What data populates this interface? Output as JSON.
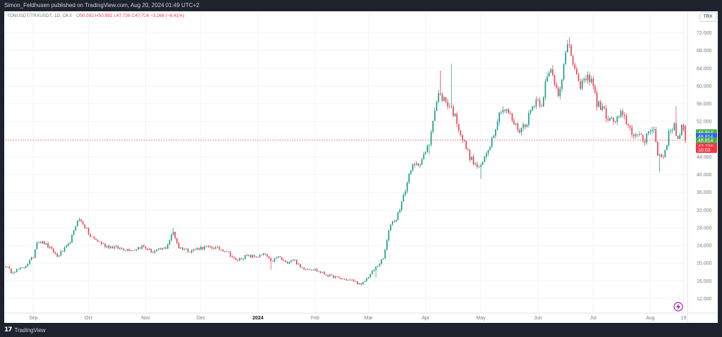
{
  "header": {
    "published_text": "Simon_Feldhusen published on TradingView.com, Aug 20, 2024 01:49 UTC+2"
  },
  "legend": {
    "symbol": "TONUSDT/TRXUSDT, 1D, OKX",
    "o_label": "O",
    "o_value": "50.992",
    "h_label": "H",
    "h_value": "50.992",
    "l_label": "L",
    "l_value": "47.726",
    "c_label": "C",
    "c_value": "47.726",
    "change": "−3.266 (−6.41%)"
  },
  "currency_button": "TRX",
  "footer": {
    "brand": "TradingView"
  },
  "price_tags": [
    {
      "label": "48.814",
      "color": "#4caf50",
      "value": 49.5
    },
    {
      "label": "48.814",
      "color": "#2962ff",
      "value": 48.6
    },
    {
      "label": "48.814",
      "color": "#4caf50",
      "value": 47.7
    },
    {
      "label": "47.726",
      "color": "#f23645",
      "value": 46.4
    },
    {
      "label": "10:03",
      "color": "#f23645",
      "value": 45.6
    }
  ],
  "colors": {
    "up": "#089981",
    "down": "#f23645",
    "last_price_line": "#f23645",
    "axis_text": "#787b86",
    "flash_icon": "#9c27b0"
  },
  "chart_data": {
    "type": "candlestick",
    "ylim": [
      10,
      74
    ],
    "y_ticks": [
      {
        "value": 72,
        "label": "72.000"
      },
      {
        "value": 68,
        "label": "68.000"
      },
      {
        "value": 64,
        "label": "64.000"
      },
      {
        "value": 60,
        "label": "60.000"
      },
      {
        "value": 56,
        "label": "56.000"
      },
      {
        "value": 52,
        "label": "52.000"
      },
      {
        "value": 48,
        "label": "48.000"
      },
      {
        "value": 44,
        "label": "44.000"
      },
      {
        "value": 40,
        "label": "40.000"
      },
      {
        "value": 36,
        "label": "36.000"
      },
      {
        "value": 32,
        "label": "32.000"
      },
      {
        "value": 28,
        "label": "28.000"
      },
      {
        "value": 24,
        "label": "24.000"
      },
      {
        "value": 20,
        "label": "20.000"
      },
      {
        "value": 16,
        "label": "16.000"
      },
      {
        "value": 12,
        "label": "12.000"
      }
    ],
    "x_ticks": [
      {
        "date": "2023-09-01",
        "label": "Sep"
      },
      {
        "date": "2023-10-01",
        "label": "Oct"
      },
      {
        "date": "2023-11-01",
        "label": "Nov"
      },
      {
        "date": "2023-12-01",
        "label": "Dec"
      },
      {
        "date": "2024-01-01",
        "label": "2024",
        "bold": true
      },
      {
        "date": "2024-02-01",
        "label": "Feb"
      },
      {
        "date": "2024-03-01",
        "label": "Mar"
      },
      {
        "date": "2024-04-01",
        "label": "Apr"
      },
      {
        "date": "2024-05-01",
        "label": "May"
      },
      {
        "date": "2024-06-01",
        "label": "Jun"
      },
      {
        "date": "2024-07-01",
        "label": "Jul"
      },
      {
        "date": "2024-08-01",
        "label": "Aug"
      },
      {
        "date": "2024-08-19",
        "label": "19"
      }
    ],
    "first_date": "2023-08-17",
    "last_date": "2024-08-20",
    "last_price": 47.726,
    "price_path": [
      [
        "2023-08-17",
        19.5
      ],
      [
        "2023-08-20",
        18.0
      ],
      [
        "2023-08-27",
        19.0
      ],
      [
        "2023-09-01",
        21.5
      ],
      [
        "2023-09-03",
        25.0
      ],
      [
        "2023-09-07",
        24.5
      ],
      [
        "2023-09-12",
        22.5
      ],
      [
        "2023-09-14",
        21.5
      ],
      [
        "2023-09-20",
        24.0
      ],
      [
        "2023-09-23",
        27.0
      ],
      [
        "2023-09-25",
        30.0
      ],
      [
        "2023-09-28",
        29.0
      ],
      [
        "2023-10-02",
        26.0
      ],
      [
        "2023-10-06",
        25.0
      ],
      [
        "2023-10-10",
        24.0
      ],
      [
        "2023-10-15",
        23.5
      ],
      [
        "2023-10-25",
        23.0
      ],
      [
        "2023-10-30",
        23.8
      ],
      [
        "2023-11-05",
        22.5
      ],
      [
        "2023-11-12",
        23.5
      ],
      [
        "2023-11-16",
        27.0
      ],
      [
        "2023-11-19",
        23.5
      ],
      [
        "2023-11-25",
        22.8
      ],
      [
        "2023-12-01",
        23.5
      ],
      [
        "2023-12-08",
        23.5
      ],
      [
        "2023-12-15",
        22.8
      ],
      [
        "2023-12-20",
        20.5
      ],
      [
        "2023-12-25",
        21.5
      ],
      [
        "2024-01-01",
        21.5
      ],
      [
        "2024-01-05",
        22.0
      ],
      [
        "2024-01-08",
        20.2
      ],
      [
        "2024-01-12",
        21.5
      ],
      [
        "2024-01-16",
        20.0
      ],
      [
        "2024-01-20",
        21.0
      ],
      [
        "2024-01-24",
        19.0
      ],
      [
        "2024-02-01",
        18.5
      ],
      [
        "2024-02-08",
        17.2
      ],
      [
        "2024-02-15",
        16.5
      ],
      [
        "2024-02-22",
        16.0
      ],
      [
        "2024-02-26",
        15.0
      ],
      [
        "2024-03-01",
        17.0
      ],
      [
        "2024-03-05",
        19.0
      ],
      [
        "2024-03-09",
        21.0
      ],
      [
        "2024-03-11",
        25.0
      ],
      [
        "2024-03-13",
        29.0
      ],
      [
        "2024-03-16",
        30.0
      ],
      [
        "2024-03-20",
        35.0
      ],
      [
        "2024-03-24",
        41.5
      ],
      [
        "2024-03-27",
        42.0
      ],
      [
        "2024-03-31",
        44.0
      ],
      [
        "2024-04-03",
        47.0
      ],
      [
        "2024-04-05",
        53.0
      ],
      [
        "2024-04-08",
        58.0
      ],
      [
        "2024-04-11",
        57.0
      ],
      [
        "2024-04-15",
        55.0
      ],
      [
        "2024-04-18",
        52.0
      ],
      [
        "2024-04-21",
        48.0
      ],
      [
        "2024-04-25",
        44.0
      ],
      [
        "2024-04-28",
        42.0
      ],
      [
        "2024-05-01",
        41.5
      ],
      [
        "2024-05-04",
        45.0
      ],
      [
        "2024-05-07",
        48.0
      ],
      [
        "2024-05-09",
        51.0
      ],
      [
        "2024-05-12",
        55.0
      ],
      [
        "2024-05-16",
        54.0
      ],
      [
        "2024-05-19",
        51.5
      ],
      [
        "2024-05-22",
        50.0
      ],
      [
        "2024-05-26",
        52.0
      ],
      [
        "2024-05-28",
        54.5
      ],
      [
        "2024-05-31",
        57.0
      ],
      [
        "2024-06-03",
        56.0
      ],
      [
        "2024-06-05",
        60.5
      ],
      [
        "2024-06-08",
        63.5
      ],
      [
        "2024-06-12",
        58.5
      ],
      [
        "2024-06-14",
        62.0
      ],
      [
        "2024-06-16",
        67.0
      ],
      [
        "2024-06-18",
        69.5
      ],
      [
        "2024-06-20",
        65.0
      ],
      [
        "2024-06-23",
        60.0
      ],
      [
        "2024-06-27",
        61.5
      ],
      [
        "2024-06-30",
        62.0
      ],
      [
        "2024-07-03",
        56.0
      ],
      [
        "2024-07-06",
        55.0
      ],
      [
        "2024-07-09",
        52.5
      ],
      [
        "2024-07-13",
        52.0
      ],
      [
        "2024-07-16",
        53.5
      ],
      [
        "2024-07-19",
        52.0
      ],
      [
        "2024-07-22",
        49.5
      ],
      [
        "2024-07-26",
        48.5
      ],
      [
        "2024-07-29",
        47.5
      ],
      [
        "2024-07-31",
        50.5
      ],
      [
        "2024-08-03",
        50.0
      ],
      [
        "2024-08-05",
        44.5
      ],
      [
        "2024-08-08",
        44.0
      ],
      [
        "2024-08-11",
        49.0
      ],
      [
        "2024-08-14",
        51.5
      ],
      [
        "2024-08-16",
        47.5
      ],
      [
        "2024-08-18",
        50.8
      ],
      [
        "2024-08-20",
        47.7
      ]
    ],
    "spikes": [
      {
        "date": "2023-11-16",
        "high": 28.0
      },
      {
        "date": "2024-01-08",
        "low": 18.5
      },
      {
        "date": "2024-03-05",
        "low": 16.8
      },
      {
        "date": "2024-04-03",
        "low": 44.5
      },
      {
        "date": "2024-04-09",
        "high": 63.5
      },
      {
        "date": "2024-04-15",
        "high": 65.0
      },
      {
        "date": "2024-05-01",
        "low": 39.0
      },
      {
        "date": "2024-06-18",
        "high": 71.0
      },
      {
        "date": "2024-08-06",
        "low": 40.5
      },
      {
        "date": "2024-08-15",
        "high": 55.5
      }
    ]
  }
}
